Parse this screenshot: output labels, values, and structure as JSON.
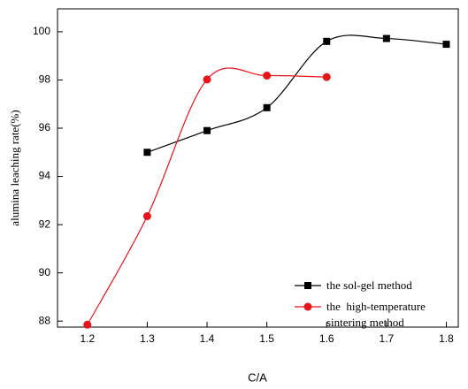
{
  "chart_data": {
    "type": "line",
    "x": [
      1.2,
      1.3,
      1.4,
      1.5,
      1.6,
      1.7,
      1.8
    ],
    "series": [
      {
        "name": "the sol-gel method",
        "color": "#000000",
        "marker": "square",
        "values": [
          null,
          95.0,
          95.9,
          96.85,
          99.6,
          99.72,
          99.48
        ]
      },
      {
        "name": "the  high-temperature sintering method",
        "color": "#e8141c",
        "marker": "circle",
        "values": [
          87.85,
          92.35,
          98.02,
          98.18,
          98.12,
          null,
          null
        ]
      }
    ],
    "x_label": "C/A",
    "y_label": "alumina leaching rate(%)",
    "xlim": [
      1.15,
      1.82
    ],
    "ylim": [
      87.75,
      100.95
    ],
    "xticks": [
      1.2,
      1.3,
      1.4,
      1.5,
      1.6,
      1.7,
      1.8
    ],
    "yticks": [
      88,
      90,
      92,
      94,
      96,
      98,
      100
    ],
    "legend": "lower right"
  }
}
